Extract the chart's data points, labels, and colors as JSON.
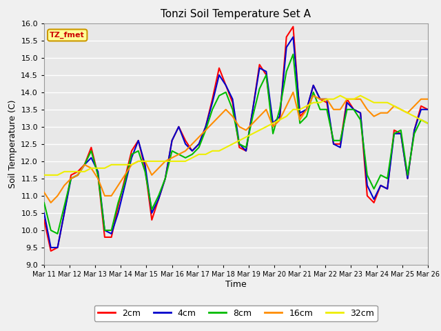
{
  "title": "Tonzi Soil Temperature Set A",
  "xlabel": "Time",
  "ylabel": "Soil Temperature (C)",
  "ylim": [
    9.0,
    16.0
  ],
  "yticks": [
    9.0,
    9.5,
    10.0,
    10.5,
    11.0,
    11.5,
    12.0,
    12.5,
    13.0,
    13.5,
    14.0,
    14.5,
    15.0,
    15.5,
    16.0
  ],
  "xtick_labels": [
    "Mar 11",
    "Mar 12",
    "Mar 13",
    "Mar 14",
    "Mar 15",
    "Mar 16",
    "Mar 17",
    "Mar 18",
    "Mar 19",
    "Mar 20",
    "Mar 21",
    "Mar 22",
    "Mar 23",
    "Mar 24",
    "Mar 25",
    "Mar 26"
  ],
  "annotation_text": "TZ_fmet",
  "annotation_bg": "#FFFF99",
  "annotation_border": "#CC9900",
  "colors": {
    "2cm": "#FF0000",
    "4cm": "#0000CC",
    "8cm": "#00BB00",
    "16cm": "#FF8C00",
    "32cm": "#EEEE00"
  },
  "legend_labels": [
    "2cm",
    "4cm",
    "8cm",
    "16cm",
    "32cm"
  ],
  "plot_bg": "#E8E8E8",
  "fig_bg": "#F0F0F0",
  "grid_color": "#FFFFFF",
  "t_2cm": [
    10.3,
    9.4,
    9.5,
    10.5,
    11.6,
    11.7,
    11.9,
    12.4,
    11.6,
    9.8,
    9.8,
    10.7,
    11.5,
    12.3,
    12.6,
    11.8,
    10.3,
    10.9,
    11.5,
    12.6,
    13.0,
    12.6,
    12.3,
    12.5,
    13.0,
    13.8,
    14.7,
    14.2,
    13.7,
    12.4,
    12.3,
    13.5,
    14.8,
    14.5,
    13.0,
    13.2,
    15.6,
    15.9,
    13.3,
    13.5,
    14.2,
    13.8,
    13.7,
    12.5,
    12.5,
    13.8,
    13.5,
    13.4,
    11.0,
    10.8,
    11.3,
    11.2,
    12.9,
    12.8,
    11.5,
    12.9,
    13.6,
    13.5
  ],
  "t_4cm": [
    10.5,
    9.5,
    9.5,
    10.5,
    11.5,
    11.6,
    11.9,
    12.1,
    11.7,
    10.0,
    9.9,
    10.5,
    11.3,
    12.1,
    12.6,
    11.9,
    10.5,
    10.9,
    11.5,
    12.6,
    13.0,
    12.5,
    12.3,
    12.5,
    13.0,
    13.7,
    14.5,
    14.2,
    13.8,
    12.5,
    12.3,
    13.5,
    14.7,
    14.6,
    13.1,
    13.3,
    15.3,
    15.6,
    13.4,
    13.5,
    14.2,
    13.8,
    13.8,
    12.5,
    12.4,
    13.7,
    13.5,
    13.4,
    11.3,
    10.9,
    11.3,
    11.2,
    12.8,
    12.8,
    11.5,
    12.9,
    13.5,
    13.5
  ],
  "t_8cm": [
    10.8,
    10.0,
    9.9,
    10.7,
    11.5,
    11.6,
    11.9,
    12.3,
    11.6,
    10.0,
    10.0,
    10.8,
    11.4,
    12.2,
    12.3,
    11.7,
    10.6,
    11.0,
    11.5,
    12.3,
    12.2,
    12.1,
    12.2,
    12.4,
    12.9,
    13.5,
    13.9,
    14.0,
    13.5,
    12.5,
    12.4,
    13.3,
    14.1,
    14.5,
    12.8,
    13.5,
    14.6,
    15.1,
    13.1,
    13.3,
    14.0,
    13.5,
    13.5,
    12.6,
    12.6,
    13.5,
    13.5,
    13.2,
    11.6,
    11.2,
    11.6,
    11.5,
    12.8,
    12.9,
    11.6,
    12.8,
    13.2,
    13.1
  ],
  "t_16cm": [
    11.1,
    10.8,
    11.0,
    11.3,
    11.5,
    11.6,
    11.9,
    11.8,
    11.5,
    11.0,
    11.0,
    11.3,
    11.6,
    11.9,
    12.0,
    12.0,
    11.6,
    11.8,
    12.0,
    12.1,
    12.2,
    12.3,
    12.5,
    12.7,
    12.9,
    13.1,
    13.3,
    13.5,
    13.3,
    13.0,
    12.9,
    13.1,
    13.3,
    13.5,
    13.0,
    13.2,
    13.6,
    14.0,
    13.2,
    13.5,
    13.9,
    13.8,
    13.8,
    13.5,
    13.5,
    13.8,
    13.8,
    13.8,
    13.5,
    13.3,
    13.4,
    13.4,
    13.6,
    13.5,
    13.4,
    13.6,
    13.8,
    13.8
  ],
  "t_32cm": [
    11.6,
    11.6,
    11.6,
    11.7,
    11.7,
    11.7,
    11.7,
    11.8,
    11.8,
    11.8,
    11.9,
    11.9,
    11.9,
    11.9,
    12.0,
    12.0,
    12.0,
    12.0,
    12.0,
    12.0,
    12.0,
    12.0,
    12.1,
    12.2,
    12.2,
    12.3,
    12.3,
    12.4,
    12.5,
    12.6,
    12.7,
    12.8,
    12.9,
    13.0,
    13.1,
    13.2,
    13.3,
    13.5,
    13.5,
    13.6,
    13.7,
    13.7,
    13.8,
    13.8,
    13.9,
    13.8,
    13.8,
    13.9,
    13.8,
    13.7,
    13.7,
    13.7,
    13.6,
    13.5,
    13.4,
    13.3,
    13.2,
    13.1
  ]
}
